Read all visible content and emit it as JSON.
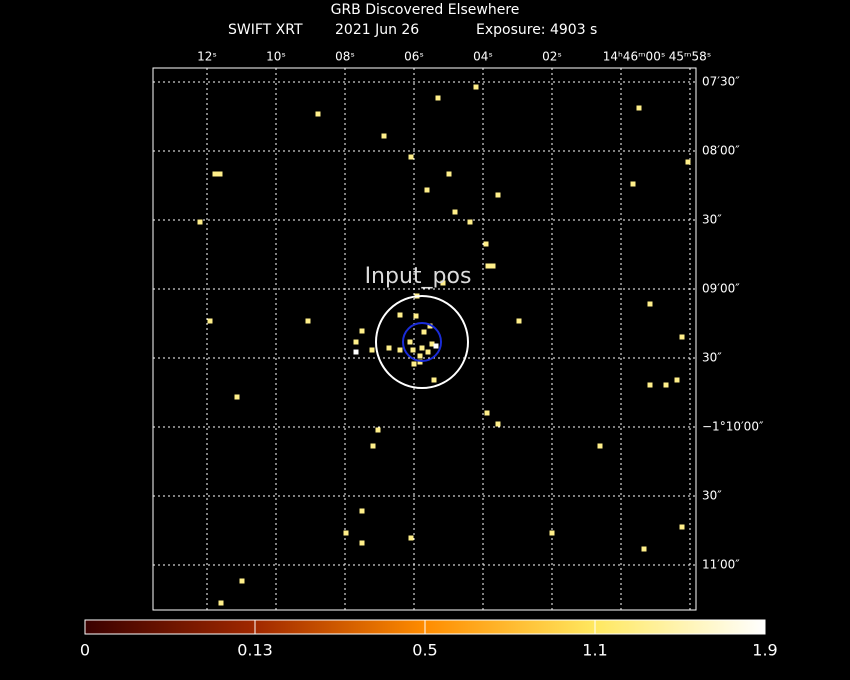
{
  "header": {
    "title": "GRB Discovered Elsewhere",
    "instrument": "SWIFT XRT",
    "date": "2021 Jun 26",
    "exposure": "Exposure: 4903 s"
  },
  "ra_labels": [
    "12ˢ",
    "10ˢ",
    "08ˢ",
    "06ˢ",
    "04ˢ",
    "02ˢ",
    "14ʰ46ᵐ00ˢ",
    "45ᵐ58ˢ"
  ],
  "dec_labels": [
    "07′30″",
    "08′00″",
    "30″",
    "09′00″",
    "30″",
    "−1°10′00″",
    "30″",
    "11′00″"
  ],
  "marker_label": "Input_pos",
  "colorbar_labels": [
    "0",
    "0.13",
    "0.5",
    "1.1",
    "1.9"
  ]
}
